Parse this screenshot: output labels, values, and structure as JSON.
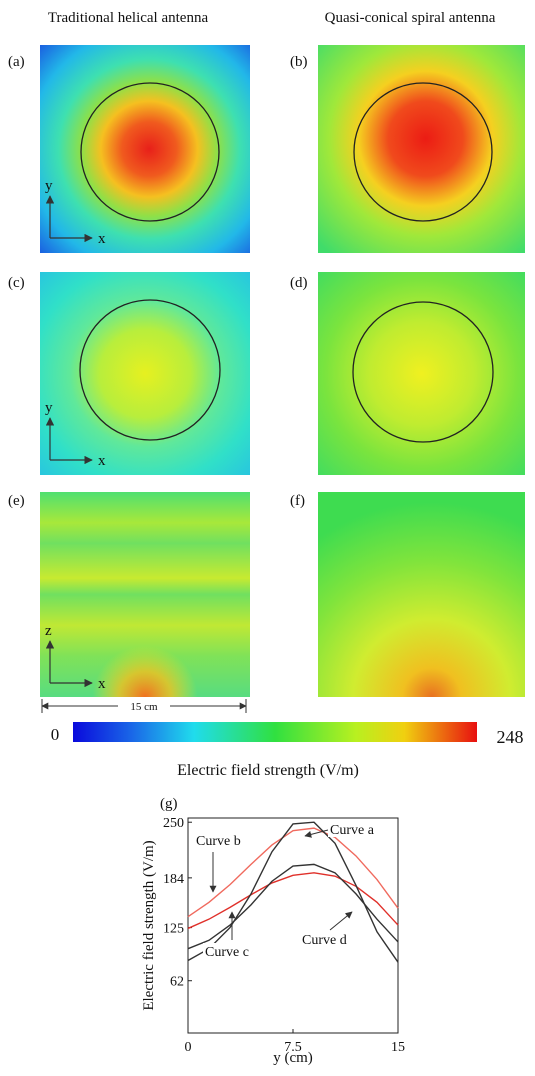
{
  "figure": {
    "column_titles": [
      "Traditional helical antenna",
      "Quasi-conical spiral antenna"
    ],
    "panels": [
      {
        "label": "(a)",
        "axis_labels": [
          "y",
          "x"
        ]
      },
      {
        "label": "(b)"
      },
      {
        "label": "(c)",
        "axis_labels": [
          "y",
          "x"
        ]
      },
      {
        "label": "(d)"
      },
      {
        "label": "(e)",
        "axis_labels": [
          "z",
          "x"
        ]
      },
      {
        "label": "(f)"
      }
    ],
    "scale_bar": "15 cm",
    "colorbar": {
      "min": 0,
      "max": 248,
      "title": "Electric field strength (V/m)"
    }
  },
  "chart_data": {
    "type": "line",
    "panel_label": "(g)",
    "x_label": "y (cm)",
    "y_label": "Electric field strength (V/m)",
    "x": [
      0,
      1.5,
      3,
      4.5,
      6,
      7.5,
      9,
      10.5,
      12,
      13.5,
      15
    ],
    "xlim": [
      0,
      15
    ],
    "xticks": [
      0,
      7.5,
      15
    ],
    "ylim": [
      0,
      255
    ],
    "yticks": [
      62,
      125,
      184,
      250
    ],
    "series": [
      {
        "name": "Curve a",
        "color": "#f06a5e",
        "values": [
          138,
          155,
          176,
          200,
          223,
          240,
          243,
          232,
          210,
          182,
          148
        ]
      },
      {
        "name": "Curve b",
        "color": "#e0302a",
        "values": [
          124,
          135,
          149,
          164,
          178,
          187,
          190,
          186,
          174,
          155,
          128
        ]
      },
      {
        "name": "Curve c",
        "color": "#333333",
        "values": [
          86,
          100,
          125,
          165,
          215,
          248,
          250,
          225,
          175,
          120,
          84
        ]
      },
      {
        "name": "Curve d",
        "color": "#333333",
        "values": [
          100,
          110,
          128,
          152,
          180,
          198,
          200,
          190,
          165,
          135,
          108
        ]
      }
    ]
  }
}
